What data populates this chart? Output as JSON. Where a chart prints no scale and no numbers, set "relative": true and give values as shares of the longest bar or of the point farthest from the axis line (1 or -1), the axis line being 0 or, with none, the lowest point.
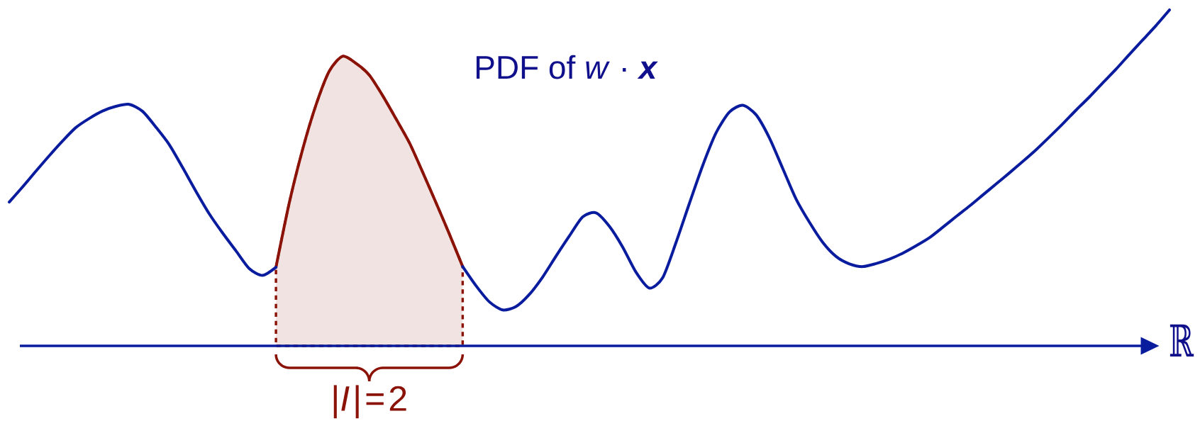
{
  "chart_data": {
    "type": "line",
    "title": "PDF of *w* · **x**",
    "xlabel": "ℝ",
    "relative": true,
    "categories": [
      null,
      null,
      null,
      null,
      null,
      null,
      null,
      null,
      null,
      null,
      null,
      null,
      null,
      null,
      null,
      null,
      null,
      null,
      null,
      null,
      null,
      null,
      null,
      null,
      null,
      null,
      null,
      null,
      null,
      null,
      null,
      null,
      null,
      null,
      null,
      null,
      null,
      null,
      null,
      null,
      null,
      null,
      null,
      null,
      null,
      null,
      null,
      null,
      null,
      null,
      null,
      null,
      null,
      null,
      null,
      null,
      null,
      null,
      null,
      null,
      null,
      null,
      null,
      null,
      null,
      null,
      null,
      null,
      null,
      null,
      null,
      null,
      null,
      null,
      null,
      null,
      null,
      null,
      null,
      null,
      null,
      null,
      null,
      null,
      null,
      null,
      null,
      null
    ],
    "series": [
      {
        "color": "#0a1c9e",
        "values": [
          0.428,
          0.473,
          0.52,
          0.566,
          0.61,
          0.65,
          0.677,
          0.699,
          0.713,
          0.719,
          0.698,
          0.651,
          0.599,
          0.531,
          0.46,
          0.393,
          0.336,
          0.283,
          0.23,
          0.21,
          0.234,
          null,
          null,
          null,
          null,
          null,
          null,
          null,
          null,
          null,
          null,
          null,
          null,
          null,
          0.236,
          0.179,
          0.131,
          0.107,
          0.117,
          0.153,
          0.205,
          0.267,
          0.327,
          0.384,
          0.396,
          0.356,
          0.294,
          0.219,
          0.172,
          0.203,
          0.308,
          0.424,
          0.537,
          0.634,
          0.696,
          0.716,
          0.688,
          0.619,
          0.528,
          0.437,
          0.368,
          0.308,
          0.266,
          0.244,
          0.236,
          0.245,
          0.258,
          0.276,
          0.298,
          0.322,
          0.353,
          0.385,
          0.416,
          0.449,
          0.482,
          0.515,
          0.549,
          0.584,
          0.622,
          0.661,
          0.702,
          0.741,
          0.783,
          0.824,
          0.868,
          0.911,
          0.954,
          1.0
        ]
      },
      {
        "type": "area",
        "color": "#8b1206",
        "values": [
          null,
          null,
          null,
          null,
          null,
          null,
          null,
          null,
          null,
          null,
          null,
          null,
          null,
          null,
          null,
          null,
          null,
          null,
          null,
          null,
          0.234,
          0.426,
          0.585,
          0.717,
          0.818,
          0.862,
          0.841,
          0.806,
          0.745,
          0.676,
          0.605,
          0.517,
          0.426,
          0.333,
          0.236,
          null,
          null,
          null,
          null,
          null,
          null,
          null,
          null,
          null,
          null,
          null,
          null,
          null,
          null,
          null,
          null,
          null,
          null,
          null,
          null,
          null,
          null,
          null,
          null,
          null,
          null,
          null,
          null,
          null,
          null,
          null,
          null,
          null,
          null,
          null,
          null,
          null,
          null,
          null,
          null,
          null,
          null,
          null,
          null,
          null,
          null,
          null,
          null,
          null,
          null,
          null,
          null,
          null
        ]
      }
    ],
    "annotations": [
      "|*I*|=2"
    ]
  }
}
